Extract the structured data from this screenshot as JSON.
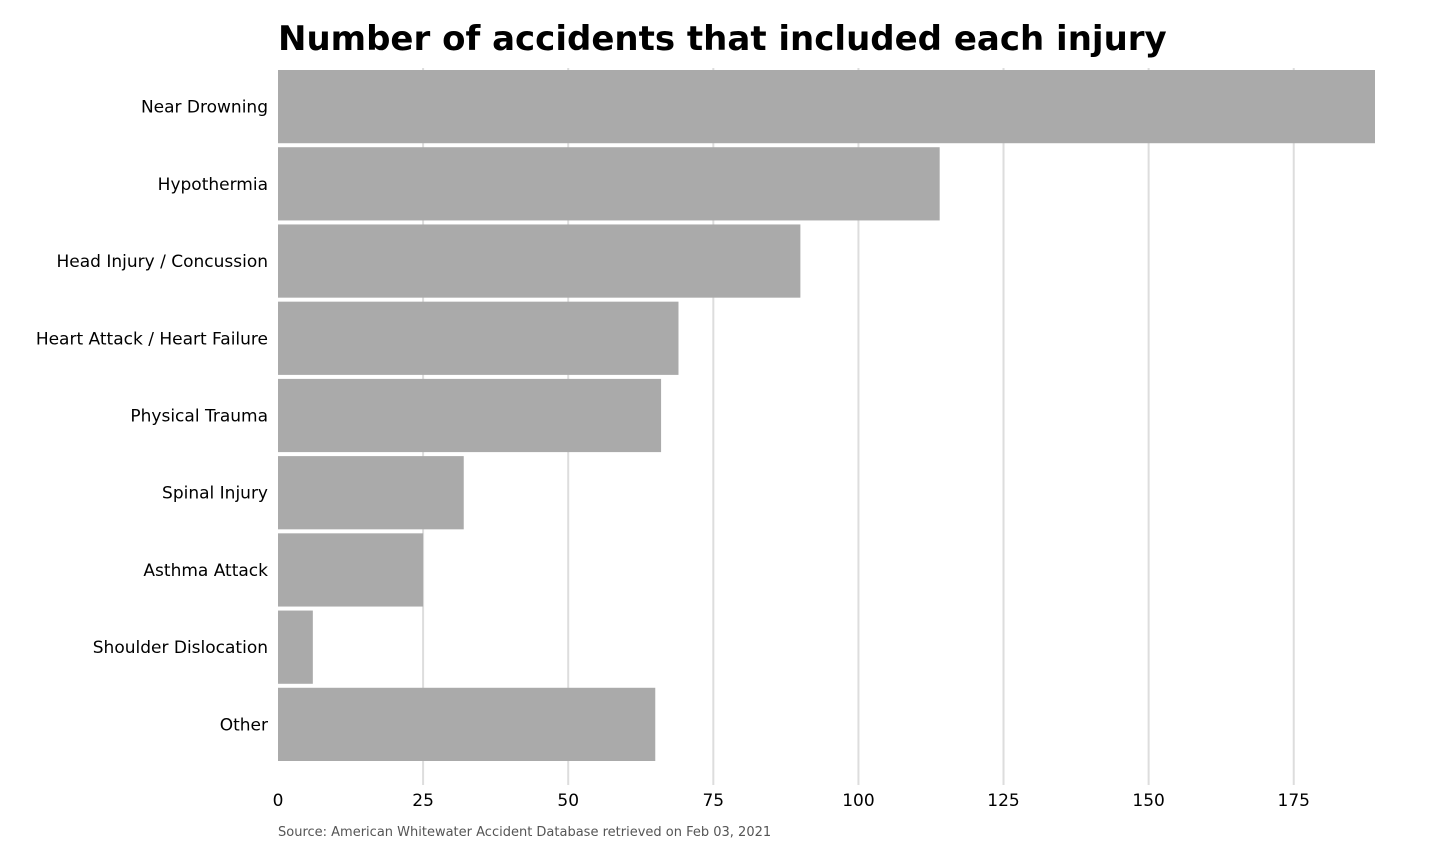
{
  "chart_data": {
    "type": "bar",
    "orientation": "horizontal",
    "title": "Number of accidents that included each injury",
    "source": "Source: American Whitewater Accident Database retrieved on Feb 03, 2021",
    "categories": [
      "Near Drowning",
      "Hypothermia",
      "Head Injury / Concussion",
      "Heart Attack / Heart Failure",
      "Physical Trauma",
      "Spinal Injury",
      "Asthma Attack",
      "Shoulder Dislocation",
      "Other"
    ],
    "values": [
      189,
      114,
      90,
      69,
      66,
      32,
      25,
      6,
      65
    ],
    "xlim": [
      0,
      189
    ],
    "xticks": [
      0,
      25,
      50,
      75,
      100,
      125,
      150,
      175
    ],
    "grid": "vertical",
    "bar_color": "#aaaaaa",
    "grid_color": "#dddddd"
  }
}
